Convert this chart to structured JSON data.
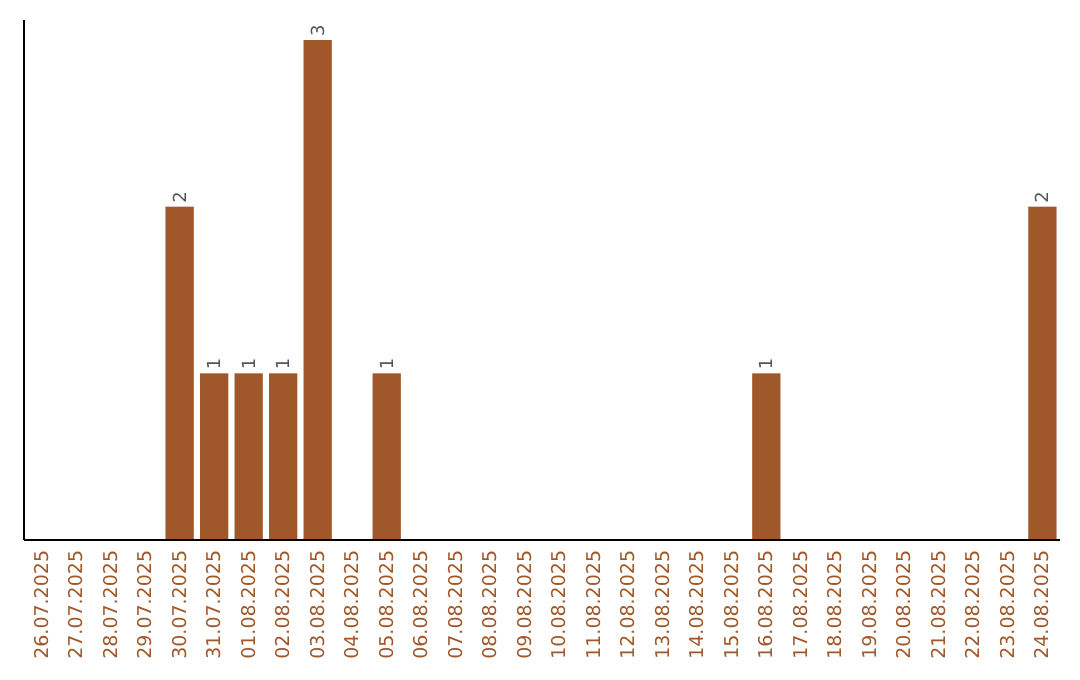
{
  "chart_data": {
    "type": "bar",
    "categories": [
      "26.07.2025",
      "27.07.2025",
      "28.07.2025",
      "29.07.2025",
      "30.07.2025",
      "31.07.2025",
      "01.08.2025",
      "02.08.2025",
      "03.08.2025",
      "04.08.2025",
      "05.08.2025",
      "06.08.2025",
      "07.08.2025",
      "08.08.2025",
      "09.08.2025",
      "10.08.2025",
      "11.08.2025",
      "12.08.2025",
      "13.08.2025",
      "14.08.2025",
      "15.08.2025",
      "16.08.2025",
      "17.08.2025",
      "18.08.2025",
      "19.08.2025",
      "20.08.2025",
      "21.08.2025",
      "22.08.2025",
      "23.08.2025",
      "24.08.2025"
    ],
    "values": [
      0,
      0,
      0,
      0,
      2,
      1,
      1,
      1,
      3,
      0,
      1,
      0,
      0,
      0,
      0,
      0,
      0,
      0,
      0,
      0,
      0,
      1,
      0,
      0,
      0,
      0,
      0,
      0,
      0,
      2
    ],
    "value_labels": [
      null,
      null,
      null,
      null,
      "2",
      "1",
      "1",
      "1",
      "3",
      null,
      "1",
      null,
      null,
      null,
      null,
      null,
      null,
      null,
      null,
      null,
      null,
      "1",
      null,
      null,
      null,
      null,
      null,
      null,
      null,
      "2"
    ],
    "color": "#a0582a"
  }
}
